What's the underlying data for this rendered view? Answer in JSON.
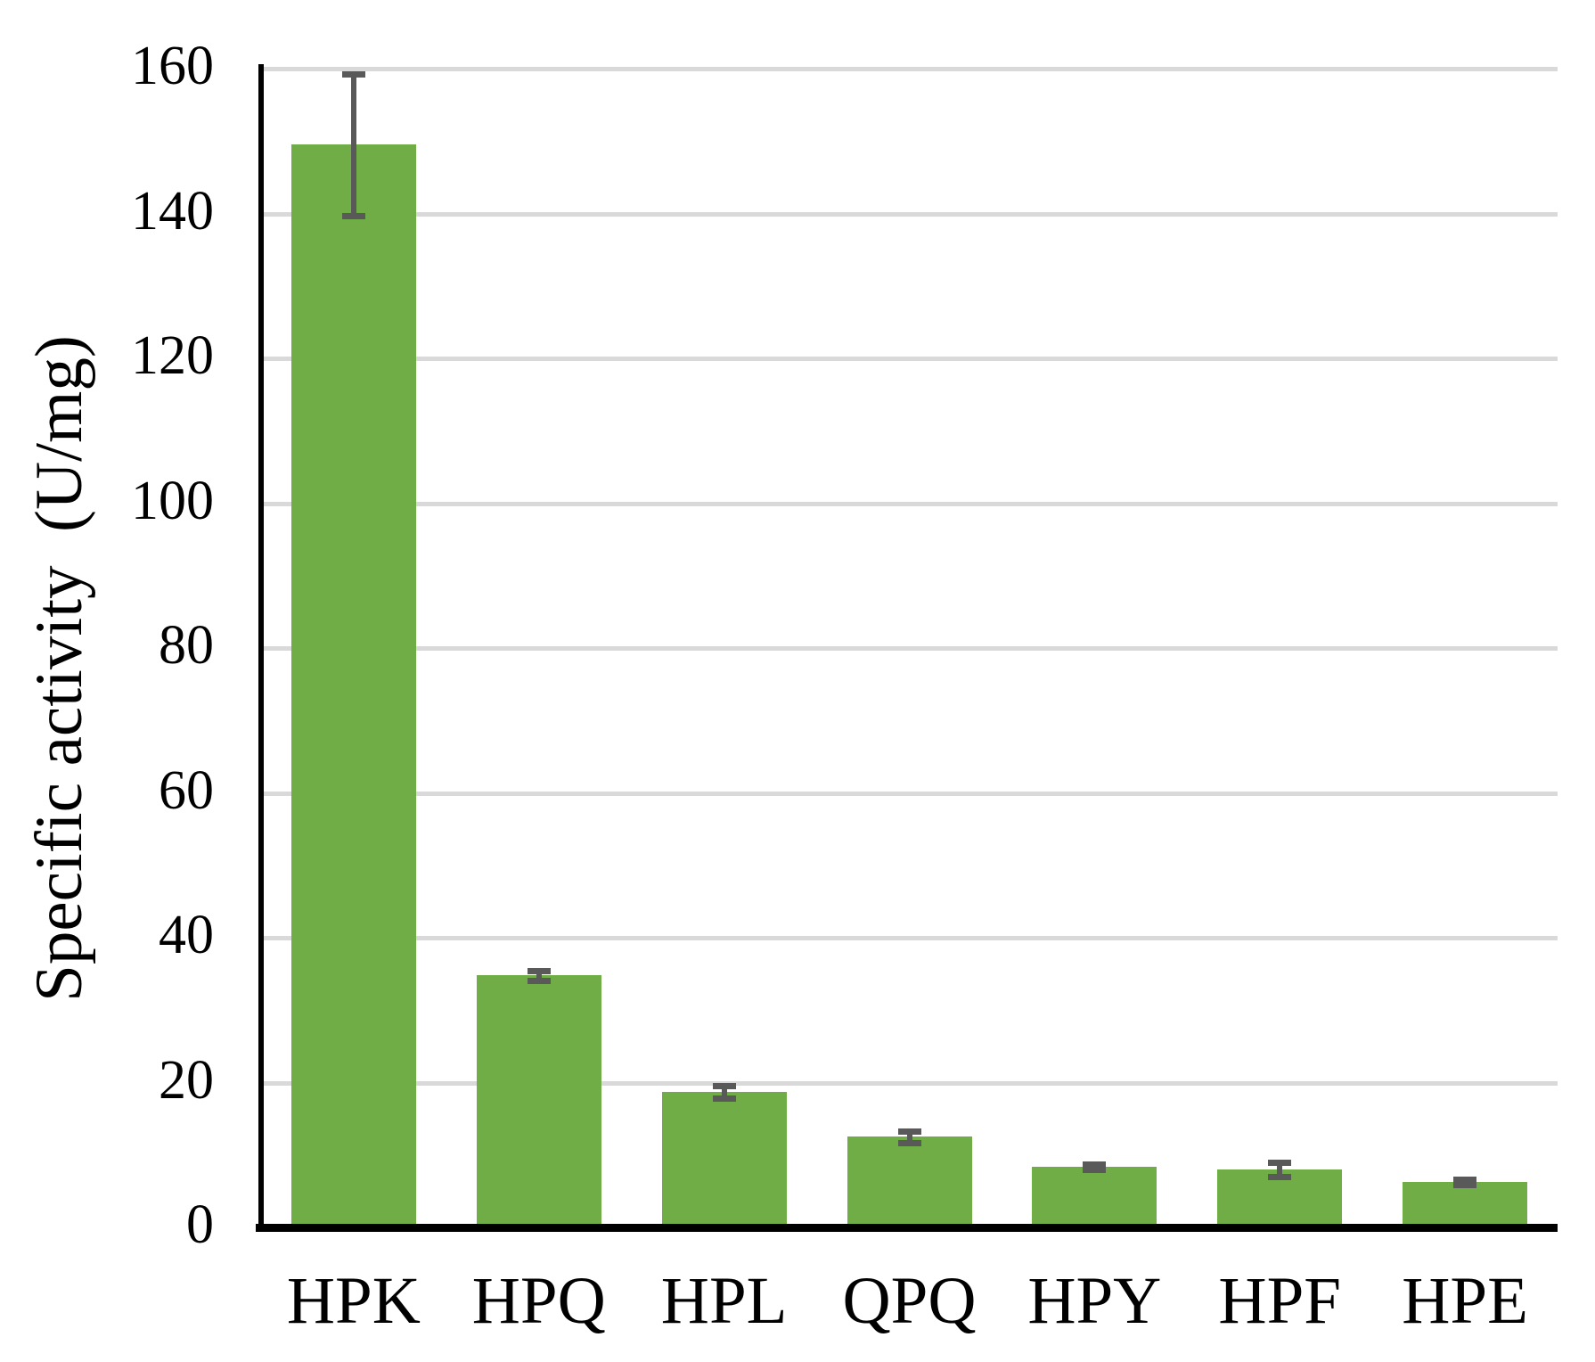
{
  "chart_data": {
    "type": "bar",
    "title": "",
    "ylabel": "Specific activity  (U/mg)",
    "xlabel": "",
    "categories": [
      "HPK",
      "HPQ",
      "HPL",
      "QPQ",
      "HPY",
      "HPF",
      "HPE"
    ],
    "values": [
      149.5,
      34.8,
      18.7,
      12.5,
      8.4,
      8.0,
      6.3
    ],
    "errors": [
      9.8,
      0.7,
      0.9,
      0.8,
      0.4,
      1.0,
      0.4
    ],
    "ylim": [
      0,
      160
    ],
    "yticks": [
      0,
      20,
      40,
      60,
      80,
      100,
      120,
      140,
      160
    ],
    "ytick_labels": [
      "0",
      "20",
      "40",
      "60",
      "80",
      "100",
      "120",
      "140",
      "160"
    ],
    "grid": true,
    "legend": false,
    "colors": {
      "bar": "#70AD47",
      "error_bar": "#595959",
      "gridline": "#D9D9D9",
      "axis": "#000000",
      "text": "#000000",
      "background": "#FFFFFF"
    }
  }
}
